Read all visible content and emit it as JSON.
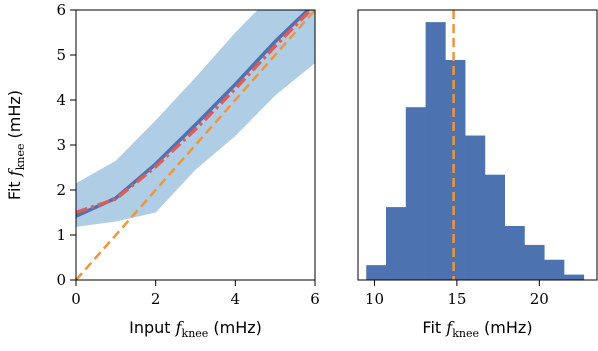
{
  "chart_data": [
    {
      "type": "line",
      "xlabel": "Input f_knee (mHz)",
      "xlabel_parts": {
        "prefix": "Input ",
        "var": "f",
        "sub": "knee",
        "suffix": " (mHz)"
      },
      "ylabel": "Fit f_knee (mHz)",
      "ylabel_parts": {
        "prefix": "Fit ",
        "var": "f",
        "sub": "knee",
        "suffix": " (mHz)"
      },
      "xlim": [
        0,
        6
      ],
      "ylim": [
        0,
        6
      ],
      "xticks": [
        "0",
        "2",
        "4",
        "6"
      ],
      "yticks": [
        "0",
        "1",
        "2",
        "3",
        "4",
        "5",
        "6"
      ],
      "grid": false,
      "band": {
        "x": [
          0,
          1,
          2,
          3,
          4,
          5,
          6
        ],
        "lower": [
          1.18,
          1.3,
          1.5,
          2.45,
          3.2,
          4.1,
          4.82
        ],
        "upper": [
          2.15,
          2.65,
          3.55,
          4.5,
          5.5,
          6.4,
          7.0
        ],
        "color": "#b0cde6"
      },
      "series": [
        {
          "x": [
            0,
            1,
            2,
            3,
            4,
            5,
            6
          ],
          "values": [
            1.42,
            1.82,
            2.58,
            3.45,
            4.35,
            5.3,
            6.15
          ],
          "color": "#4c72b0",
          "style": "solid"
        },
        {
          "x": [
            0,
            1,
            2,
            3,
            4,
            5,
            6
          ],
          "values": [
            1.5,
            1.8,
            2.52,
            3.35,
            4.25,
            5.2,
            6.1
          ],
          "color": "#dd5c5c",
          "style": "dashdot"
        },
        {
          "x": [
            0,
            6
          ],
          "values": [
            0,
            6
          ],
          "color": "#f0953a",
          "style": "dashed"
        }
      ]
    },
    {
      "type": "bar",
      "xlabel": "Fit f_knee (mHz)",
      "xlabel_parts": {
        "prefix": "Fit ",
        "var": "f",
        "sub": "knee",
        "suffix": " (mHz)"
      },
      "xlim": [
        9,
        23.5
      ],
      "ylim": [
        0,
        1
      ],
      "xticks": [
        "10",
        "15",
        "20"
      ],
      "bin_edges": [
        9.5,
        10.7,
        11.9,
        13.1,
        14.3,
        15.5,
        16.7,
        17.9,
        19.1,
        20.3,
        21.5,
        22.7
      ],
      "values": [
        0.055,
        0.27,
        0.64,
        0.955,
        0.815,
        0.535,
        0.39,
        0.2,
        0.13,
        0.075,
        0.02
      ],
      "bar_color": "#4c72b0",
      "vline": 14.8,
      "vline_color": "#f0953a"
    }
  ]
}
